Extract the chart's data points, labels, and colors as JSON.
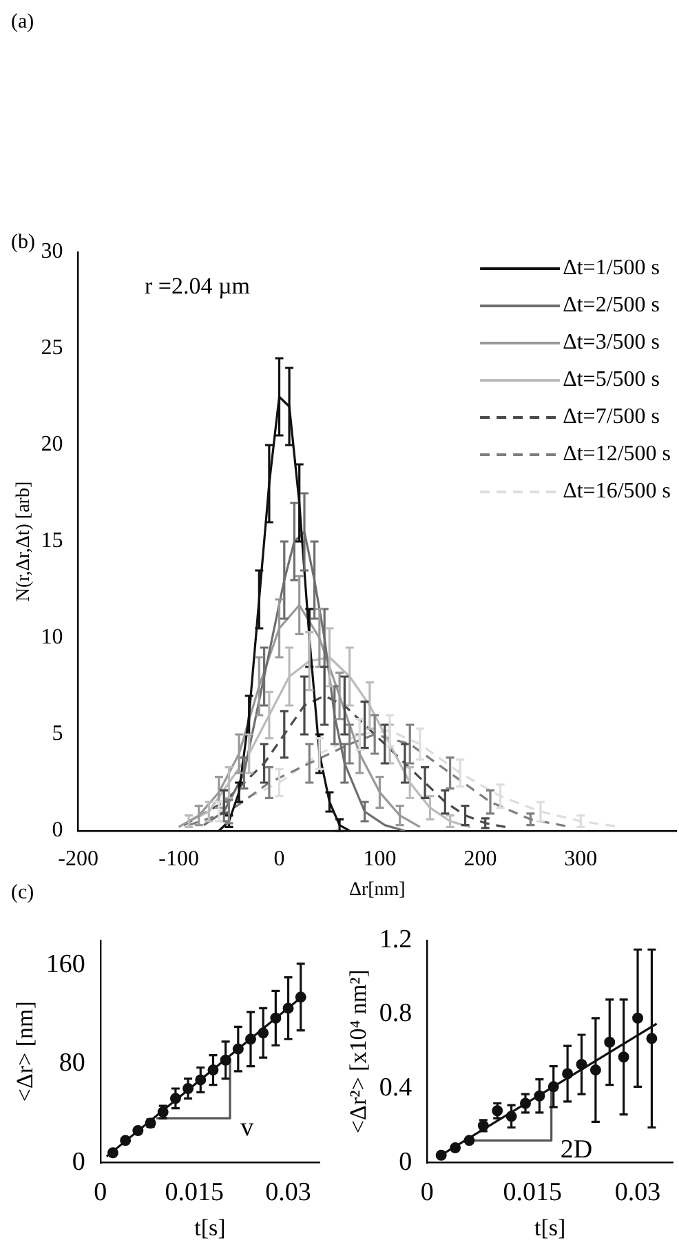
{
  "chart_data": [
    {
      "type": "line",
      "xlabel": "Δr[nm]",
      "ylabel": "N(r,Δr,Δt) [arb]",
      "annotations": [
        "(a)",
        "(b)",
        "r =2.04 µm"
      ],
      "xlim": [
        -200,
        395
      ],
      "xticks": [
        -200,
        -100,
        0,
        100,
        200,
        300
      ],
      "ylim": [
        0,
        30
      ],
      "yticks": [
        0,
        5,
        10,
        15,
        20,
        25,
        30
      ],
      "grid": false,
      "legend": "top right",
      "series": [
        {
          "name": "Δt=1/500 s",
          "color": "#111111",
          "line_style": "solid",
          "x": [
            -60,
            -50,
            -40,
            -30,
            -20,
            -10,
            0,
            10,
            20,
            30,
            40,
            50,
            60,
            70
          ],
          "values": [
            0,
            0.5,
            2,
            6,
            12,
            18,
            22.5,
            22,
            17,
            10,
            4,
            1.5,
            0.3,
            0
          ],
          "errors": [
            null,
            0.3,
            0.5,
            1,
            1.5,
            2,
            2,
            2,
            2,
            1.5,
            1,
            0.5,
            0.3,
            null
          ]
        },
        {
          "name": "Δt=2/500 s",
          "color": "#6e6e6e",
          "line_style": "solid",
          "x": [
            -75,
            -55,
            -35,
            -15,
            5,
            15,
            25,
            35,
            45,
            55,
            65,
            85,
            105,
            125
          ],
          "values": [
            0.3,
            1,
            3,
            8,
            13,
            15,
            15.5,
            13,
            10,
            6,
            3.5,
            1,
            0.3,
            0
          ],
          "errors": [
            null,
            0.5,
            0.8,
            1.5,
            2,
            2,
            2,
            2,
            1.5,
            1.5,
            1,
            0.5,
            null,
            null
          ]
        },
        {
          "name": "Δt=3/500 s",
          "color": "#999999",
          "line_style": "solid",
          "x": [
            -100,
            -80,
            -60,
            -40,
            -20,
            0,
            20,
            40,
            60,
            80,
            100,
            120,
            140
          ],
          "values": [
            0.2,
            0.8,
            2,
            4,
            7.5,
            10.5,
            11.7,
            10,
            7,
            4,
            2,
            0.8,
            0.2
          ],
          "errors": [
            null,
            0.5,
            0.8,
            1,
            1.5,
            1.5,
            1.5,
            1.5,
            1.2,
            1,
            0.8,
            0.5,
            null
          ]
        },
        {
          "name": "Δt=5/500 s",
          "color": "#bbbbbb",
          "line_style": "solid",
          "x": [
            -90,
            -70,
            -50,
            -30,
            -10,
            10,
            30,
            50,
            70,
            90,
            110,
            130,
            150,
            170,
            190
          ],
          "values": [
            0.5,
            1,
            2.5,
            4,
            6,
            8,
            8.8,
            9,
            8,
            6.5,
            4.5,
            2.5,
            1.2,
            0.5,
            0.2
          ],
          "errors": [
            0.3,
            0.5,
            0.8,
            1,
            1.2,
            1.5,
            1.5,
            1.5,
            1.5,
            1.2,
            1,
            0.8,
            0.6,
            0.3,
            null
          ]
        },
        {
          "name": "Δt=7/500 s",
          "color": "#4a4a4a",
          "line_style": "dashed",
          "x": [
            -95,
            -55,
            -15,
            5,
            25,
            45,
            65,
            85,
            105,
            125,
            145,
            165,
            185,
            205,
            225
          ],
          "values": [
            0.3,
            1.5,
            3.5,
            5,
            6.5,
            7,
            6.5,
            5.5,
            4.5,
            3.5,
            2.5,
            1.5,
            0.8,
            0.4,
            0.2
          ],
          "errors": [
            null,
            0.6,
            1,
            1.2,
            1.5,
            1.5,
            1.5,
            1.2,
            1,
            1,
            0.8,
            0.6,
            0.5,
            0.25,
            null
          ]
        },
        {
          "name": "Δt=12/500 s",
          "color": "#7f7f7f",
          "line_style": "dashed",
          "x": [
            -90,
            -50,
            -10,
            30,
            70,
            95,
            130,
            170,
            210,
            250,
            290
          ],
          "values": [
            0.3,
            1,
            2.5,
            3.5,
            4.5,
            5,
            4.5,
            3,
            1.5,
            0.6,
            0.2
          ],
          "errors": [
            null,
            0.6,
            0.8,
            1,
            1,
            1,
            1,
            0.8,
            0.6,
            0.3,
            null
          ]
        },
        {
          "name": "Δt=16/500 s",
          "color": "#dddddd",
          "line_style": "dashed",
          "x": [
            -60,
            0,
            40,
            80,
            110,
            140,
            180,
            220,
            260,
            300,
            340
          ],
          "values": [
            1,
            2.5,
            4,
            5,
            5.2,
            4.5,
            3,
            1.8,
            1,
            0.5,
            0.2
          ],
          "errors": [
            0.5,
            0.7,
            0.8,
            0.8,
            0.8,
            0.8,
            0.7,
            0.6,
            0.5,
            0.3,
            null
          ]
        }
      ]
    },
    {
      "type": "scatter",
      "xlabel": "t[s]",
      "ylabel": "<Δr> [nm]",
      "annotations": [
        "(c)",
        {
          "text": "v",
          "x": 0.0215,
          "y": 36
        }
      ],
      "xlim": [
        0,
        0.035
      ],
      "xticks": [
        0,
        0.015,
        0.03
      ],
      "ylim": [
        0,
        180
      ],
      "yticks": [
        0,
        80,
        160
      ],
      "grid": false,
      "marker": "circle",
      "x": [
        0.002,
        0.004,
        0.006,
        0.008,
        0.01,
        0.012,
        0.014,
        0.016,
        0.018,
        0.02,
        0.022,
        0.024,
        0.026,
        0.028,
        0.03,
        0.032
      ],
      "series": [
        {
          "type": "scatter",
          "color": "#111111",
          "values": [
            8,
            18,
            26,
            32,
            41,
            52,
            60,
            67,
            75,
            83,
            92,
            100,
            105,
            117,
            125,
            134
          ],
          "errors": [
            1,
            1,
            1.5,
            3,
            5,
            8,
            8,
            10,
            12,
            15,
            18,
            22,
            20,
            22,
            25,
            27
          ]
        },
        {
          "type": "line",
          "marker": "none",
          "color": "#111111",
          "x": [
            0.001,
            0.0326
          ],
          "values": [
            5,
            136
          ]
        },
        {
          "type": "line",
          "marker": "none",
          "color": "#555555",
          "x": [
            0.0089,
            0.0207,
            0.0207
          ],
          "values": [
            36,
            36,
            85
          ]
        }
      ]
    },
    {
      "type": "scatter",
      "xlabel": "t[s]",
      "ylabel": "<Δr²> [x10⁴ nm²]",
      "annotations": [
        {
          "text": "2D",
          "x": 0.0182,
          "y": 0.12
        }
      ],
      "xlim": [
        0,
        0.035
      ],
      "xticks": [
        0,
        0.015,
        0.03
      ],
      "ylim": [
        0,
        1.2
      ],
      "yticks": [
        0,
        0.4,
        0.8,
        1.2
      ],
      "grid": false,
      "marker": "circle",
      "x": [
        0.002,
        0.004,
        0.006,
        0.008,
        0.01,
        0.012,
        0.014,
        0.016,
        0.018,
        0.02,
        0.022,
        0.024,
        0.026,
        0.028,
        0.03,
        0.032
      ],
      "series": [
        {
          "type": "scatter",
          "color": "#111111",
          "values": [
            0.04,
            0.08,
            0.12,
            0.2,
            0.28,
            0.25,
            0.32,
            0.36,
            0.41,
            0.48,
            0.53,
            0.5,
            0.65,
            0.57,
            0.78,
            0.67
          ],
          "errors": [
            0,
            0,
            0,
            0.03,
            0.04,
            0.06,
            0.05,
            0.09,
            0.11,
            0.15,
            0.16,
            0.28,
            0.23,
            0.31,
            0.37,
            0.48
          ]
        },
        {
          "type": "line",
          "marker": "none",
          "color": "#111111",
          "x": [
            0.0015,
            0.0327
          ],
          "values": [
            0.03,
            0.75
          ]
        },
        {
          "type": "line",
          "marker": "none",
          "color": "#555555",
          "x": [
            0.0062,
            0.0177,
            0.0177
          ],
          "values": [
            0.12,
            0.12,
            0.4
          ]
        }
      ]
    }
  ]
}
